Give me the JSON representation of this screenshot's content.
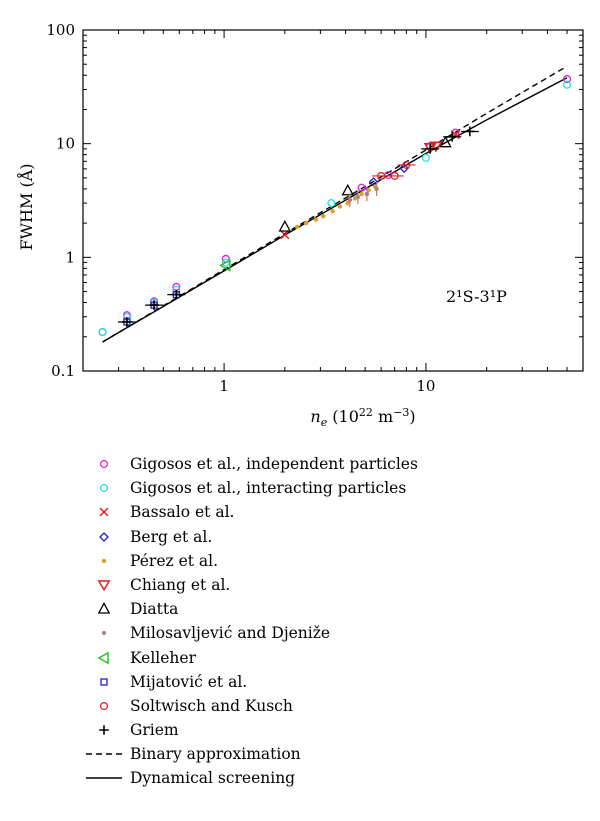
{
  "chart_data": {
    "type": "scatter",
    "title": "",
    "xlabel": "n_e (10^22 m^-3)",
    "ylabel": "FWHM (Å)",
    "xscale": "log",
    "yscale": "log",
    "xlim": [
      0.2,
      60
    ],
    "ylim": [
      0.1,
      100
    ],
    "xticks": [
      1,
      10
    ],
    "yticks": [
      0.1,
      1,
      10,
      100
    ],
    "xtick_labels": [
      "1",
      "10"
    ],
    "ytick_labels": [
      "0.1",
      "1",
      "10",
      "100"
    ],
    "grid": false,
    "legend_position": "below",
    "annotation": "2¹S-3¹P",
    "series": [
      {
        "name": "Gigosos et al., independent particles",
        "marker": "circle",
        "color": "#e020e0",
        "x": [
          0.25,
          0.33,
          0.45,
          0.58,
          1.02,
          4.8,
          6.5,
          10.5,
          14.0,
          50.0
        ],
        "y": [
          0.22,
          0.31,
          0.41,
          0.55,
          0.97,
          4.1,
          5.3,
          9.5,
          12.5,
          37.0
        ]
      },
      {
        "name": "Gigosos et al., interacting particles",
        "marker": "circle",
        "color": "#20e0e0",
        "x": [
          0.25,
          0.33,
          0.45,
          0.58,
          1.02,
          3.4,
          10.0,
          50.0
        ],
        "y": [
          0.22,
          0.3,
          0.4,
          0.52,
          0.9,
          3.0,
          7.5,
          33.0
        ]
      },
      {
        "name": "Bassalo et al.",
        "marker": "x",
        "color": "#e02020",
        "x": [
          2.0,
          14.0
        ],
        "y": [
          1.58,
          12.0
        ]
      },
      {
        "name": "Berg et al.",
        "marker": "diamond",
        "color": "#2020c0",
        "x": [
          5.5,
          7.8
        ],
        "y": [
          4.6,
          6.1
        ]
      },
      {
        "name": "Pérez et al.",
        "marker": "dot",
        "color": "#e0a020",
        "x": [
          2.3,
          2.55,
          2.85,
          3.1,
          3.45,
          3.75,
          4.1,
          4.45,
          4.8,
          5.2,
          5.6
        ],
        "y": [
          1.85,
          2.0,
          2.15,
          2.3,
          2.55,
          2.8,
          3.0,
          3.3,
          3.6,
          3.9,
          4.2
        ]
      },
      {
        "name": "Chiang et al.",
        "marker": "triangle-down",
        "color": "#e02020",
        "x": [
          10.5,
          11.2
        ],
        "y": [
          9.2,
          9.5
        ]
      },
      {
        "name": "Diatta",
        "marker": "triangle-up",
        "color": "#000000",
        "x": [
          2.0,
          4.1,
          12.5
        ],
        "y": [
          1.85,
          3.85,
          10.2
        ]
      },
      {
        "name": "Milosavljević and Djeniže",
        "marker": "dot-errorbar",
        "color": "#b08080",
        "x": [
          4.2,
          4.6,
          5.1,
          5.7
        ],
        "y": [
          3.2,
          3.4,
          3.6,
          4.0
        ]
      },
      {
        "name": "Kelleher",
        "marker": "triangle-left",
        "color": "#20c020",
        "x": [
          1.02
        ],
        "y": [
          0.85
        ]
      },
      {
        "name": "Mijatović et al.",
        "marker": "square",
        "color": "#2020c0",
        "x": [
          0.33,
          0.45,
          0.58
        ],
        "y": [
          0.27,
          0.38,
          0.47
        ]
      },
      {
        "name": "Soltwisch and Kusch",
        "marker": "circle",
        "color": "#e02020",
        "x": [
          6.0,
          7.0,
          8.0
        ],
        "y": [
          5.2,
          5.2,
          6.5
        ]
      },
      {
        "name": "Griem",
        "marker": "plus",
        "color": "#000000",
        "x": [
          0.33,
          0.45,
          0.58,
          10.5,
          13.5,
          16.5
        ],
        "y": [
          0.27,
          0.38,
          0.47,
          9.0,
          11.5,
          12.8
        ]
      },
      {
        "name": "Binary approximation",
        "type": "line",
        "style": "dashed",
        "color": "#000000",
        "x": [
          0.25,
          1,
          2,
          5,
          10,
          20,
          50
        ],
        "y": [
          0.18,
          0.78,
          1.62,
          4.2,
          8.8,
          18.5,
          48
        ]
      },
      {
        "name": "Dynamical screening",
        "type": "line",
        "style": "solid",
        "color": "#000000",
        "x": [
          0.25,
          1,
          2,
          5,
          10,
          20,
          50
        ],
        "y": [
          0.18,
          0.76,
          1.57,
          4.0,
          8.2,
          16.2,
          38
        ]
      }
    ]
  }
}
